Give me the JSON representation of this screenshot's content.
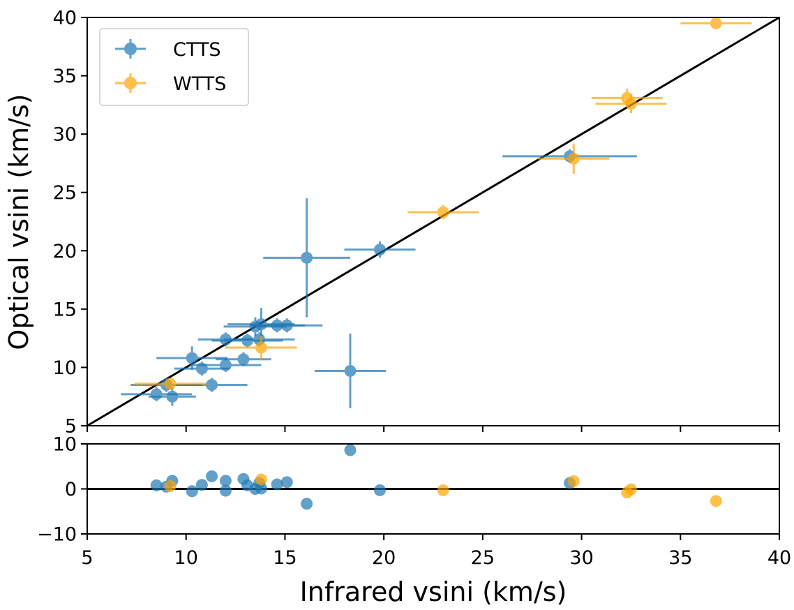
{
  "chart_data": {
    "type": "scatter",
    "colors": {
      "CTTS": "#1f77b4",
      "WTTS": "#ffa500",
      "line": "#000000"
    },
    "main": {
      "xlabel": "Infrared vsini (km/s)",
      "ylabel": "Optical vsini (km/s)",
      "xlim": [
        5,
        40
      ],
      "ylim": [
        5,
        40
      ],
      "xticks": [
        5,
        10,
        15,
        20,
        25,
        30,
        35,
        40
      ],
      "yticks": [
        5,
        10,
        15,
        20,
        25,
        30,
        35,
        40
      ],
      "ytick_labels": [
        "5",
        "10",
        "15",
        "20",
        "25",
        "30",
        "35",
        "40"
      ],
      "reference_line": "y = x"
    },
    "residual": {
      "ylim": [
        -10,
        10
      ],
      "yticks": [
        -10,
        0,
        10
      ],
      "ytick_labels": [
        "−10",
        "0",
        "10"
      ],
      "xtick_labels": [
        "5",
        "10",
        "15",
        "20",
        "25",
        "30",
        "35",
        "40"
      ],
      "reference_line": "y = 0"
    },
    "legend": {
      "position": "upper-left",
      "entries": [
        "CTTS",
        "WTTS"
      ]
    },
    "series": [
      {
        "name": "CTTS",
        "points": [
          {
            "x": 8.5,
            "y": 7.7,
            "xerr": 1.8,
            "yerr": 0.6
          },
          {
            "x": 9.3,
            "y": 7.5,
            "xerr": 1.2,
            "yerr": 0.8
          },
          {
            "x": 9.0,
            "y": 8.5,
            "xerr": 1.8,
            "yerr": 0.6
          },
          {
            "x": 10.3,
            "y": 10.8,
            "xerr": 1.8,
            "yerr": 1.0
          },
          {
            "x": 10.8,
            "y": 9.9,
            "xerr": 1.4,
            "yerr": 0.6
          },
          {
            "x": 11.3,
            "y": 8.5,
            "xerr": 1.8,
            "yerr": 0.6
          },
          {
            "x": 12.0,
            "y": 10.2,
            "xerr": 1.8,
            "yerr": 0.6
          },
          {
            "x": 12.0,
            "y": 12.4,
            "xerr": 1.4,
            "yerr": 0.6
          },
          {
            "x": 12.9,
            "y": 10.7,
            "xerr": 1.4,
            "yerr": 0.6
          },
          {
            "x": 13.1,
            "y": 12.3,
            "xerr": 1.8,
            "yerr": 0.6
          },
          {
            "x": 13.5,
            "y": 13.5,
            "xerr": 1.6,
            "yerr": 0.8
          },
          {
            "x": 13.7,
            "y": 12.4,
            "xerr": 1.8,
            "yerr": 0.6
          },
          {
            "x": 13.8,
            "y": 13.7,
            "xerr": 1.7,
            "yerr": 1.4
          },
          {
            "x": 14.6,
            "y": 13.6,
            "xerr": 1.4,
            "yerr": 0.6
          },
          {
            "x": 15.1,
            "y": 13.6,
            "xerr": 1.8,
            "yerr": 0.6
          },
          {
            "x": 16.1,
            "y": 19.4,
            "xerr": 2.2,
            "yerr": 5.1
          },
          {
            "x": 18.3,
            "y": 9.7,
            "xerr": 1.8,
            "yerr": 3.2
          },
          {
            "x": 19.8,
            "y": 20.1,
            "xerr": 1.8,
            "yerr": 0.7
          },
          {
            "x": 29.4,
            "y": 28.1,
            "xerr": 3.4,
            "yerr": 0.6
          }
        ]
      },
      {
        "name": "WTTS",
        "points": [
          {
            "x": 9.2,
            "y": 8.6,
            "xerr": 1.8,
            "yerr": 0.5
          },
          {
            "x": 13.8,
            "y": 11.7,
            "xerr": 1.8,
            "yerr": 1.0
          },
          {
            "x": 23.0,
            "y": 23.3,
            "xerr": 1.8,
            "yerr": 0.6
          },
          {
            "x": 29.6,
            "y": 27.9,
            "xerr": 1.8,
            "yerr": 1.3
          },
          {
            "x": 32.3,
            "y": 33.1,
            "xerr": 1.8,
            "yerr": 0.8
          },
          {
            "x": 32.5,
            "y": 32.6,
            "xerr": 1.8,
            "yerr": 0.8
          },
          {
            "x": 36.8,
            "y": 39.5,
            "xerr": 1.8,
            "yerr": 0.5
          }
        ]
      }
    ]
  }
}
